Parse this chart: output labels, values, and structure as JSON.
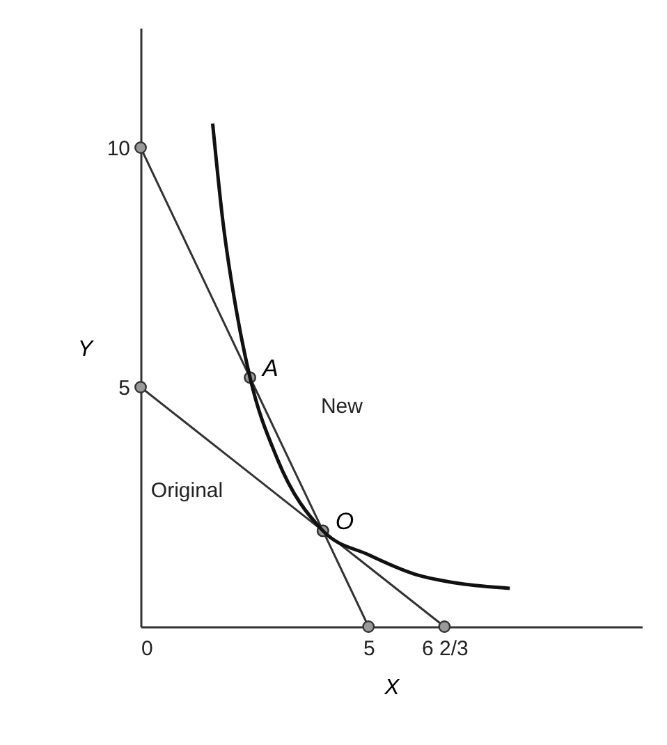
{
  "chart_data": {
    "type": "line",
    "xlabel": "X",
    "ylabel": "Y",
    "xlim": [
      0,
      11
    ],
    "ylim": [
      0,
      12.5
    ],
    "xticks": [
      0,
      5,
      {
        "value": 6.666667,
        "label": "6 2/3"
      }
    ],
    "yticks": [
      5,
      10
    ],
    "grid": false,
    "series": [
      {
        "name": "New",
        "color": "#333333",
        "x": [
          0,
          2.4,
          4,
          5
        ],
        "values": [
          10,
          5.2,
          2,
          0
        ],
        "marker": "circle"
      },
      {
        "name": "Original",
        "color": "#333333",
        "x": [
          0,
          4,
          6.666667
        ],
        "values": [
          5,
          2,
          0
        ],
        "marker": "circle"
      },
      {
        "color": "#111111",
        "x": [
          1.58,
          1.8,
          2.1,
          2.4,
          3,
          4,
          5,
          6,
          7,
          8.1
        ],
        "values": [
          10.5,
          8.5,
          6.6,
          5.2,
          3.5,
          2,
          1.5,
          1.1,
          0.9,
          0.8
        ],
        "marker": "none"
      }
    ],
    "annotations": [
      {
        "text": "A",
        "x": 2.4,
        "y": 5.2
      },
      {
        "text": "O",
        "x": 4,
        "y": 2
      }
    ]
  }
}
